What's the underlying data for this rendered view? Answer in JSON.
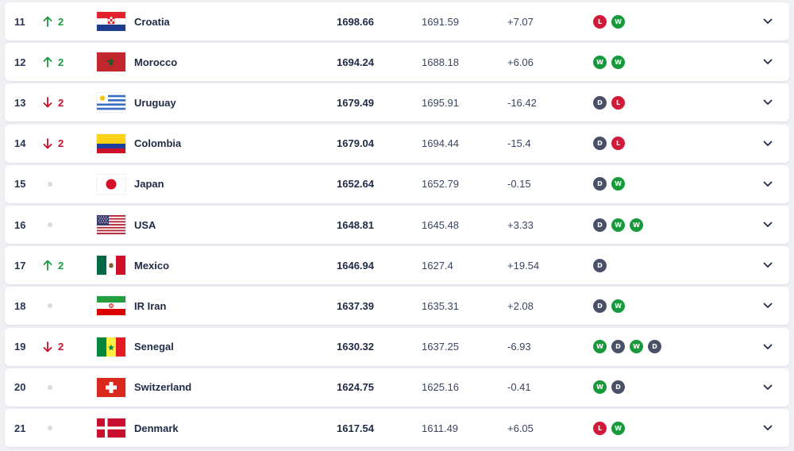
{
  "ranking": {
    "rows": [
      {
        "rank": "11",
        "move": "up",
        "move_amount": "2",
        "flag": "croatia-flag",
        "team": "Croatia",
        "total_points": "1698.66",
        "previous_points": "1691.59",
        "difference": "+7.07",
        "form": [
          "L",
          "W"
        ]
      },
      {
        "rank": "12",
        "move": "up",
        "move_amount": "2",
        "flag": "morocco-flag",
        "team": "Morocco",
        "total_points": "1694.24",
        "previous_points": "1688.18",
        "difference": "+6.06",
        "form": [
          "W",
          "W"
        ]
      },
      {
        "rank": "13",
        "move": "down",
        "move_amount": "2",
        "flag": "uruguay-flag",
        "team": "Uruguay",
        "total_points": "1679.49",
        "previous_points": "1695.91",
        "difference": "-16.42",
        "form": [
          "D",
          "L"
        ]
      },
      {
        "rank": "14",
        "move": "down",
        "move_amount": "2",
        "flag": "colombia-flag",
        "team": "Colombia",
        "total_points": "1679.04",
        "previous_points": "1694.44",
        "difference": "-15.4",
        "form": [
          "D",
          "L"
        ]
      },
      {
        "rank": "15",
        "move": "none",
        "move_amount": "",
        "flag": "japan-flag",
        "team": "Japan",
        "total_points": "1652.64",
        "previous_points": "1652.79",
        "difference": "-0.15",
        "form": [
          "D",
          "W"
        ]
      },
      {
        "rank": "16",
        "move": "none",
        "move_amount": "",
        "flag": "usa-flag",
        "team": "USA",
        "total_points": "1648.81",
        "previous_points": "1645.48",
        "difference": "+3.33",
        "form": [
          "D",
          "W",
          "W"
        ]
      },
      {
        "rank": "17",
        "move": "up",
        "move_amount": "2",
        "flag": "mexico-flag",
        "team": "Mexico",
        "total_points": "1646.94",
        "previous_points": "1627.4",
        "difference": "+19.54",
        "form": [
          "D"
        ]
      },
      {
        "rank": "18",
        "move": "none",
        "move_amount": "",
        "flag": "iran-flag",
        "team": "IR Iran",
        "total_points": "1637.39",
        "previous_points": "1635.31",
        "difference": "+2.08",
        "form": [
          "D",
          "W"
        ]
      },
      {
        "rank": "19",
        "move": "down",
        "move_amount": "2",
        "flag": "senegal-flag",
        "team": "Senegal",
        "total_points": "1630.32",
        "previous_points": "1637.25",
        "difference": "-6.93",
        "form": [
          "W",
          "D",
          "W",
          "D"
        ]
      },
      {
        "rank": "20",
        "move": "none",
        "move_amount": "",
        "flag": "switzerland-flag",
        "team": "Switzerland",
        "total_points": "1624.75",
        "previous_points": "1625.16",
        "difference": "-0.41",
        "form": [
          "W",
          "D"
        ]
      },
      {
        "rank": "21",
        "move": "none",
        "move_amount": "",
        "flag": "denmark-flag",
        "team": "Denmark",
        "total_points": "1617.54",
        "previous_points": "1611.49",
        "difference": "+6.05",
        "form": [
          "L",
          "W"
        ]
      }
    ]
  },
  "icons": {
    "up": "arrow-up-icon",
    "down": "arrow-down-icon",
    "none": "no-change-dot-icon",
    "expand": "chevron-down-icon"
  },
  "colors": {
    "up": "#1a9a3c",
    "down": "#c8102e",
    "win": "#179a3c",
    "loss": "#d11a3a",
    "draw": "#4a5068"
  }
}
